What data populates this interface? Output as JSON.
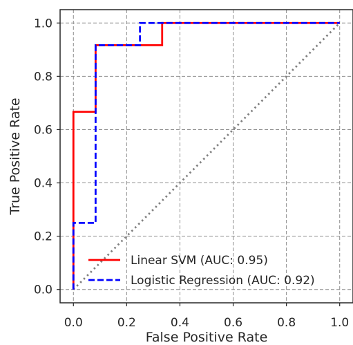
{
  "chart_data": {
    "type": "line",
    "title": "",
    "xlabel": "False Positive Rate",
    "ylabel": "True Positive Rate",
    "xlim": [
      -0.05,
      1.05
    ],
    "ylim": [
      -0.05,
      1.05
    ],
    "xticks": [
      0.0,
      0.2,
      0.4,
      0.6,
      0.8,
      1.0
    ],
    "xtick_labels": [
      "0.0",
      "0.2",
      "0.4",
      "0.6",
      "0.8",
      "1.0"
    ],
    "yticks": [
      0.0,
      0.2,
      0.4,
      0.6,
      0.8,
      1.0
    ],
    "ytick_labels": [
      "0.0",
      "0.2",
      "0.4",
      "0.6",
      "0.8",
      "1.0"
    ],
    "grid": true,
    "legend_position": "lower-right",
    "series": [
      {
        "name": "Linear SVM (AUC: 0.95)",
        "color": "#ff0000",
        "style": "solid",
        "x": [
          0.0,
          0.0,
          0.0,
          0.0833,
          0.0833,
          0.3333,
          0.3333,
          1.0
        ],
        "y": [
          0.0,
          0.6667,
          0.6667,
          0.6667,
          0.9167,
          0.9167,
          1.0,
          1.0
        ]
      },
      {
        "name": "Logistic Regression (AUC: 0.92)",
        "color": "#0000ff",
        "style": "dashed",
        "x": [
          0.0,
          0.0,
          0.0833,
          0.0833,
          0.25,
          0.25,
          1.0
        ],
        "y": [
          0.0,
          0.25,
          0.25,
          0.9167,
          0.9167,
          1.0,
          1.0
        ]
      }
    ],
    "reference_line": {
      "color": "#808080",
      "style": "dotted",
      "x": [
        0.0,
        1.0
      ],
      "y": [
        0.0,
        1.0
      ]
    }
  }
}
